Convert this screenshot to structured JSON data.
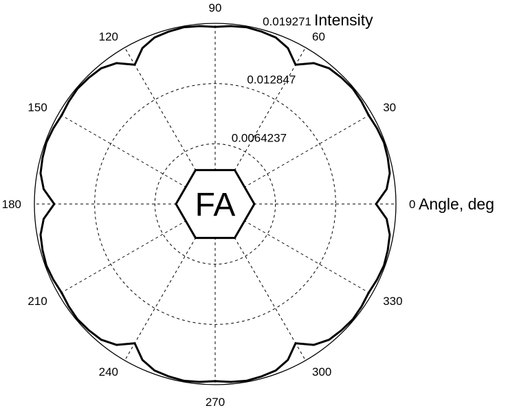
{
  "chart_data": {
    "type": "line",
    "projection": "polar",
    "title": "",
    "angle_axis": {
      "label": "Angle, deg",
      "unit": "deg",
      "range": [
        0,
        360
      ],
      "ticks": [
        "0",
        "30",
        "60",
        "90",
        "120",
        "150",
        "180",
        "210",
        "240",
        "270",
        "300",
        "330"
      ]
    },
    "radial_axis": {
      "label": "Intensity",
      "range": [
        0,
        0.019271
      ],
      "ticks": [
        "0.0064237",
        "0.012847",
        "0.019271"
      ]
    },
    "grid": true,
    "center_label": "FA",
    "series": [
      {
        "color": "#000000",
        "symmetry": "six-fold",
        "x": [
          0,
          5,
          10,
          15,
          20,
          25,
          30,
          35,
          40,
          45,
          50,
          55,
          60
        ],
        "y": [
          0.01715,
          0.01835,
          0.0189,
          0.01905,
          0.01915,
          0.01905,
          0.0189,
          0.01905,
          0.01915,
          0.01905,
          0.0189,
          0.01835,
          0.01715
        ]
      }
    ]
  }
}
